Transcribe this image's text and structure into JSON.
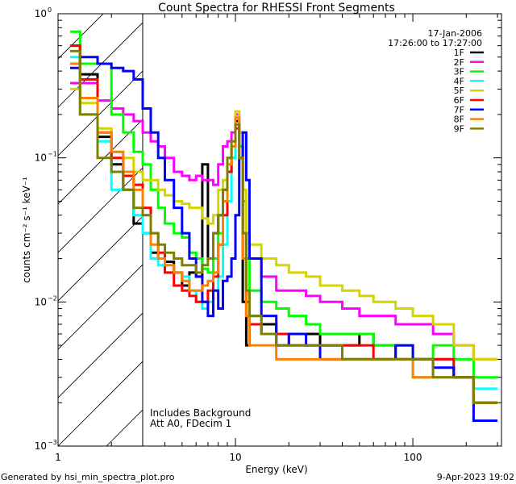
{
  "chart_data": {
    "type": "line",
    "title": "Count Spectra for RHESSI Front Segments",
    "xlabel": "Energy (keV)",
    "ylabel": "counts cm⁻² s⁻¹ keV⁻¹",
    "xscale": "log",
    "yscale": "log",
    "xlim": [
      1,
      316
    ],
    "ylim": [
      0.001,
      1
    ],
    "x_tick_labels": [
      "1",
      "10",
      "100"
    ],
    "x_tick_values": [
      1,
      10,
      100
    ],
    "y_tick_labels": [
      {
        "base": "10",
        "exp": "0",
        "value": 1
      },
      {
        "base": "10",
        "exp": "-1",
        "value": 0.1
      },
      {
        "base": "10",
        "exp": "-2",
        "value": 0.01
      },
      {
        "base": "10",
        "exp": "-3",
        "value": 0.001
      }
    ],
    "shaded_region_keV": [
      1,
      3
    ],
    "legend_placement": "top-right",
    "date": "17-Jan-2006",
    "time_range": "17:26:00 to 17:27:00",
    "annotations": [
      "Includes Background",
      "Att A0, FDecim 1"
    ],
    "footer_left": "Generated by hsi_min_spectra_plot.pro",
    "footer_right": "9-Apr-2023 19:02",
    "energy_edges": [
      1.17,
      1.33,
      1.67,
      2,
      2.33,
      2.67,
      3,
      3.33,
      3.67,
      4,
      4.5,
      5,
      5.5,
      6,
      6.5,
      7,
      7.5,
      8,
      8.5,
      9,
      9.5,
      10,
      10.5,
      11,
      11.5,
      12,
      14,
      17,
      20,
      25,
      30,
      40,
      50,
      60,
      80,
      100,
      130,
      170,
      220,
      300
    ],
    "series": [
      {
        "name": "1F",
        "color": "#000000",
        "values": [
          0.6,
          0.38,
          0.14,
          0.09,
          0.06,
          0.035,
          0.03,
          0.022,
          0.02,
          0.019,
          0.016,
          0.013,
          0.016,
          0.015,
          0.09,
          0.02,
          0.03,
          0.04,
          0.06,
          0.08,
          0.1,
          0.18,
          0.12,
          0.01,
          0.005,
          0.008,
          0.007,
          0.006,
          0.006,
          0.006,
          0.005,
          0.005,
          0.006,
          0.005,
          0.004,
          0.004,
          0.004,
          0.003,
          0.002
        ]
      },
      {
        "name": "2F",
        "color": "#ff00ff",
        "values": [
          0.33,
          0.33,
          0.25,
          0.22,
          0.2,
          0.18,
          0.15,
          0.13,
          0.12,
          0.1,
          0.08,
          0.075,
          0.07,
          0.075,
          0.07,
          0.07,
          0.065,
          0.09,
          0.12,
          0.13,
          0.15,
          0.2,
          0.12,
          0.05,
          0.03,
          0.02,
          0.015,
          0.012,
          0.012,
          0.011,
          0.01,
          0.009,
          0.008,
          0.008,
          0.007,
          0.007,
          0.006,
          0.005,
          0.004
        ]
      },
      {
        "name": "3F",
        "color": "#00ff00",
        "values": [
          0.75,
          0.45,
          0.45,
          0.2,
          0.15,
          0.11,
          0.09,
          0.06,
          0.045,
          0.035,
          0.03,
          0.028,
          0.022,
          0.02,
          0.017,
          0.016,
          0.02,
          0.03,
          0.05,
          0.08,
          0.1,
          0.17,
          0.12,
          0.05,
          0.02,
          0.012,
          0.01,
          0.009,
          0.008,
          0.007,
          0.006,
          0.006,
          0.006,
          0.005,
          0.005,
          0.004,
          0.005,
          0.004,
          0.003
        ]
      },
      {
        "name": "4F",
        "color": "#00ffff",
        "values": [
          0.5,
          0.2,
          0.13,
          0.06,
          0.06,
          0.04,
          0.03,
          0.02,
          0.018,
          0.016,
          0.016,
          0.015,
          0.012,
          0.01,
          0.009,
          0.01,
          0.012,
          0.015,
          0.025,
          0.05,
          0.1,
          0.19,
          0.1,
          0.03,
          0.012,
          0.008,
          0.006,
          0.005,
          0.005,
          0.005,
          0.005,
          0.004,
          0.004,
          0.004,
          0.004,
          0.003,
          0.004,
          0.003,
          0.0025
        ]
      },
      {
        "name": "5F",
        "color": "#d4d400",
        "values": [
          0.3,
          0.24,
          0.16,
          0.11,
          0.1,
          0.08,
          0.07,
          0.07,
          0.06,
          0.055,
          0.05,
          0.048,
          0.045,
          0.045,
          0.038,
          0.035,
          0.04,
          0.06,
          0.07,
          0.1,
          0.12,
          0.21,
          0.15,
          0.06,
          0.03,
          0.025,
          0.02,
          0.018,
          0.016,
          0.015,
          0.013,
          0.012,
          0.011,
          0.01,
          0.009,
          0.008,
          0.007,
          0.005,
          0.004
        ]
      },
      {
        "name": "6F",
        "color": "#ff0000",
        "values": [
          0.6,
          0.35,
          0.15,
          0.1,
          0.075,
          0.065,
          0.045,
          0.03,
          0.022,
          0.016,
          0.013,
          0.012,
          0.011,
          0.01,
          0.01,
          0.012,
          0.015,
          0.025,
          0.04,
          0.08,
          0.12,
          0.16,
          0.1,
          0.02,
          0.01,
          0.007,
          0.006,
          0.006,
          0.005,
          0.005,
          0.005,
          0.005,
          0.005,
          0.004,
          0.004,
          0.004,
          0.004,
          0.003,
          0.002
        ]
      },
      {
        "name": "7F",
        "color": "#0000ff",
        "values": [
          0.42,
          0.5,
          0.45,
          0.42,
          0.4,
          0.35,
          0.22,
          0.15,
          0.1,
          0.07,
          0.045,
          0.03,
          0.02,
          0.015,
          0.01,
          0.008,
          0.012,
          0.009,
          0.014,
          0.015,
          0.02,
          0.04,
          0.1,
          0.15,
          0.07,
          0.02,
          0.008,
          0.005,
          0.006,
          0.005,
          0.004,
          0.004,
          0.004,
          0.004,
          0.005,
          0.004,
          0.0035,
          0.003,
          0.0015
        ]
      },
      {
        "name": "8F",
        "color": "#ff8000",
        "values": [
          0.45,
          0.26,
          0.15,
          0.11,
          0.08,
          0.06,
          0.04,
          0.025,
          0.02,
          0.018,
          0.016,
          0.014,
          0.012,
          0.012,
          0.013,
          0.014,
          0.016,
          0.025,
          0.05,
          0.09,
          0.12,
          0.19,
          0.1,
          0.02,
          0.008,
          0.005,
          0.005,
          0.004,
          0.004,
          0.004,
          0.004,
          0.004,
          0.004,
          0.004,
          0.004,
          0.003,
          0.003,
          0.003,
          0.002
        ]
      },
      {
        "name": "9F",
        "color": "#808000",
        "values": [
          0.55,
          0.2,
          0.1,
          0.08,
          0.06,
          0.045,
          0.04,
          0.03,
          0.025,
          0.022,
          0.02,
          0.018,
          0.018,
          0.016,
          0.018,
          0.02,
          0.03,
          0.04,
          0.06,
          0.1,
          0.13,
          0.17,
          0.1,
          0.03,
          0.012,
          0.008,
          0.006,
          0.005,
          0.005,
          0.005,
          0.005,
          0.004,
          0.004,
          0.004,
          0.004,
          0.004,
          0.003,
          0.003,
          0.002
        ]
      }
    ]
  }
}
